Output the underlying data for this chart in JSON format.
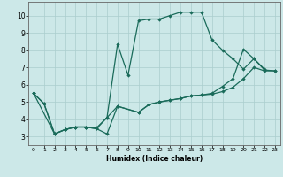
{
  "xlabel": "Humidex (Indice chaleur)",
  "bg_color": "#cce8e8",
  "grid_color": "#aacece",
  "line_color": "#1a6b5a",
  "xlim": [
    -0.5,
    23.5
  ],
  "ylim": [
    2.5,
    10.8
  ],
  "xticks": [
    0,
    1,
    2,
    3,
    4,
    5,
    6,
    7,
    8,
    9,
    10,
    11,
    12,
    13,
    14,
    15,
    16,
    17,
    18,
    19,
    20,
    21,
    22,
    23
  ],
  "yticks": [
    3,
    4,
    5,
    6,
    7,
    8,
    9,
    10
  ],
  "line1_x": [
    0,
    1,
    2,
    3,
    4,
    5,
    6,
    7,
    8,
    9,
    10,
    11,
    12,
    13,
    14,
    15,
    16,
    17,
    18,
    19,
    20,
    21,
    22
  ],
  "line1_y": [
    5.5,
    4.9,
    3.15,
    3.4,
    3.55,
    3.55,
    3.5,
    4.1,
    8.35,
    6.55,
    9.7,
    9.8,
    9.8,
    10.0,
    10.2,
    10.2,
    10.2,
    8.6,
    8.0,
    7.5,
    6.9,
    7.5,
    6.9
  ],
  "line2_x": [
    0,
    1,
    2,
    3,
    4,
    5,
    6,
    7,
    8,
    10,
    11,
    12,
    13,
    14,
    15,
    16,
    17,
    18,
    19,
    20,
    21,
    22,
    23
  ],
  "line2_y": [
    5.5,
    4.9,
    3.15,
    3.4,
    3.55,
    3.55,
    3.45,
    3.15,
    4.75,
    4.4,
    4.85,
    5.0,
    5.1,
    5.2,
    5.35,
    5.4,
    5.45,
    5.6,
    5.85,
    6.35,
    7.0,
    6.8,
    6.8
  ],
  "line3_x": [
    0,
    2,
    3,
    4,
    5,
    6,
    7,
    8,
    10,
    11,
    12,
    13,
    14,
    15,
    16,
    17,
    18,
    19,
    20,
    21,
    22,
    23
  ],
  "line3_y": [
    5.5,
    3.15,
    3.4,
    3.55,
    3.55,
    3.45,
    4.1,
    4.75,
    4.4,
    4.85,
    5.0,
    5.1,
    5.2,
    5.35,
    5.4,
    5.5,
    5.9,
    6.35,
    8.05,
    7.5,
    6.85,
    6.8
  ]
}
